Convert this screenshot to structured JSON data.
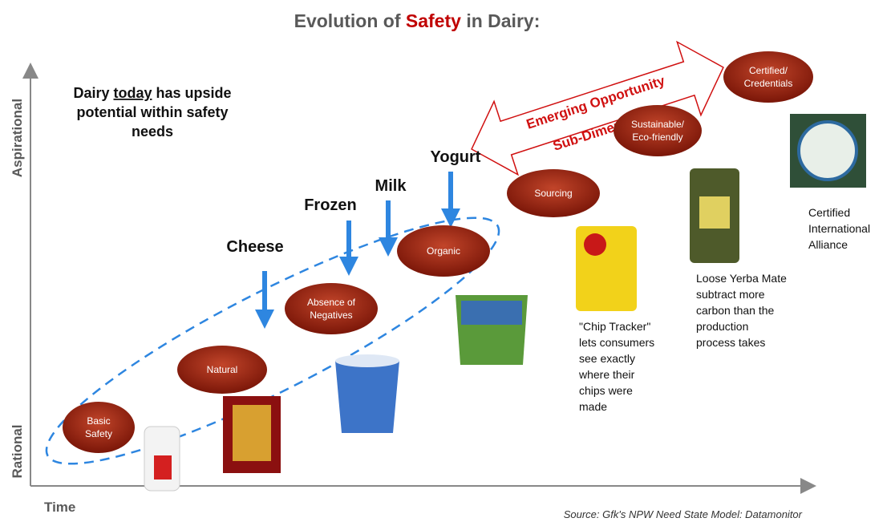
{
  "title": {
    "parts": [
      "Evolution of ",
      "Safety",
      " in Dairy:"
    ]
  },
  "y_axis": {
    "top": "Aspirational",
    "bottom": "Rational"
  },
  "x_axis": {
    "label": "Time"
  },
  "note": {
    "lines": [
      [
        "Dairy ",
        "today",
        " has upside"
      ],
      [
        "potential within safety"
      ],
      [
        "needs"
      ]
    ]
  },
  "categories": [
    "Cheese",
    "Frozen",
    "Milk",
    "Yogurt"
  ],
  "ovals": [
    {
      "lines": [
        "Basic",
        "Safety"
      ]
    },
    {
      "lines": [
        "Natural"
      ]
    },
    {
      "lines": [
        "Absence of",
        "Negatives"
      ]
    },
    {
      "lines": [
        "Organic"
      ]
    },
    {
      "lines": [
        "Sourcing"
      ]
    },
    {
      "lines": [
        "Sustainable/",
        "Eco-friendly"
      ]
    },
    {
      "lines": [
        "Certified/",
        "Credentials"
      ]
    }
  ],
  "opportunity_arrow": {
    "lines": [
      "Emerging Opportunity",
      "Sub-Dimensions"
    ]
  },
  "captions": [
    {
      "lines": [
        "\"Chip Tracker\"",
        "lets consumers",
        "see exactly",
        "where their",
        "chips were",
        "made"
      ]
    },
    {
      "lines": [
        "Loose Yerba Mate",
        "subtract more",
        "carbon than the",
        "production",
        "process takes"
      ]
    },
    {
      "lines": [
        "Certified",
        "International",
        "Alliance"
      ]
    }
  ],
  "source": "Source: Gfk's NPW Need State Model: Datamonitor"
}
